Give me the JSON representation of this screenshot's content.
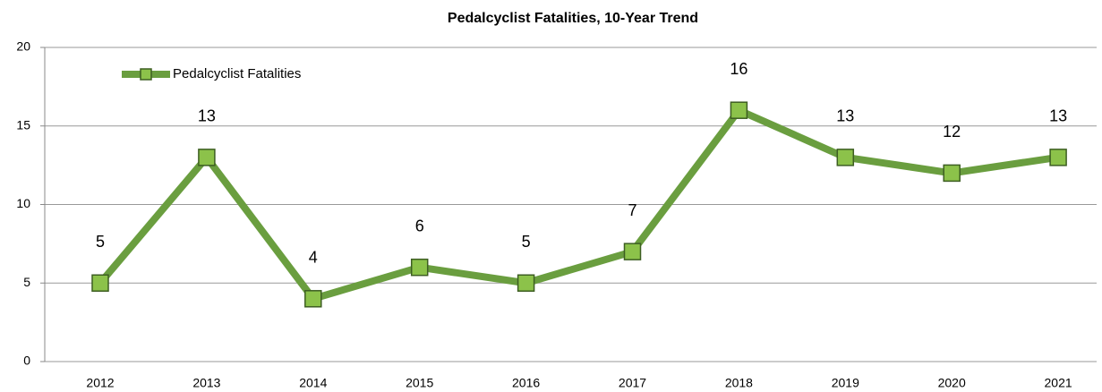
{
  "chart_data": {
    "type": "line",
    "title": "Pedalcyclist Fatalities, 10-Year Trend",
    "categories": [
      "2012",
      "2013",
      "2014",
      "2015",
      "2016",
      "2017",
      "2018",
      "2019",
      "2020",
      "2021"
    ],
    "series": [
      {
        "name": "Pedalcyclist Fatalities",
        "color": "#6a9e3f",
        "values": [
          5,
          13,
          4,
          6,
          5,
          7,
          16,
          13,
          12,
          13
        ]
      }
    ],
    "ylim": [
      0,
      20
    ],
    "yticks": [
      0,
      5,
      10,
      15,
      20
    ],
    "grid": true,
    "legend": "upper left"
  }
}
